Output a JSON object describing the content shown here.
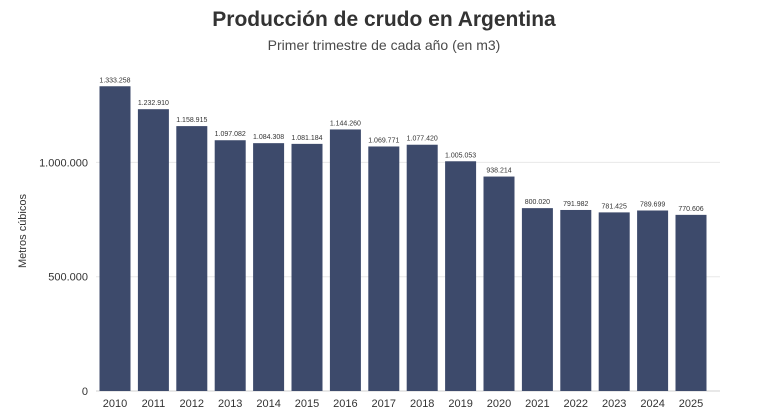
{
  "chart_data": {
    "type": "bar",
    "title": "Producción de crudo en Argentina",
    "subtitle": "Primer trimestre de cada año (en m3)",
    "xlabel": "",
    "ylabel": "Metros cúbicos",
    "ylim": [
      0,
      1400000
    ],
    "yticks": [
      0,
      500000,
      1000000
    ],
    "ytick_labels": [
      "0",
      "500.000",
      "1.000.000"
    ],
    "grid": true,
    "bar_color": "#3d4a6b",
    "categories": [
      "2010",
      "2011",
      "2012",
      "2013",
      "2014",
      "2015",
      "2016",
      "2017",
      "2018",
      "2019",
      "2020",
      "2021",
      "2022",
      "2023",
      "2024",
      "2025"
    ],
    "values": [
      1333258,
      1232910,
      1158915,
      1097082,
      1084308,
      1081184,
      1144260,
      1069771,
      1077420,
      1005053,
      938214,
      800020,
      791982,
      781425,
      789699,
      770606
    ],
    "value_labels": [
      "1.333.258",
      "1.232.910",
      "1.158.915",
      "1.097.082",
      "1.084.308",
      "1.081.184",
      "1.144.260",
      "1.069.771",
      "1.077.420",
      "1.005.053",
      "938.214",
      "800.020",
      "791.982",
      "781.425",
      "789.699",
      "770.606"
    ]
  }
}
